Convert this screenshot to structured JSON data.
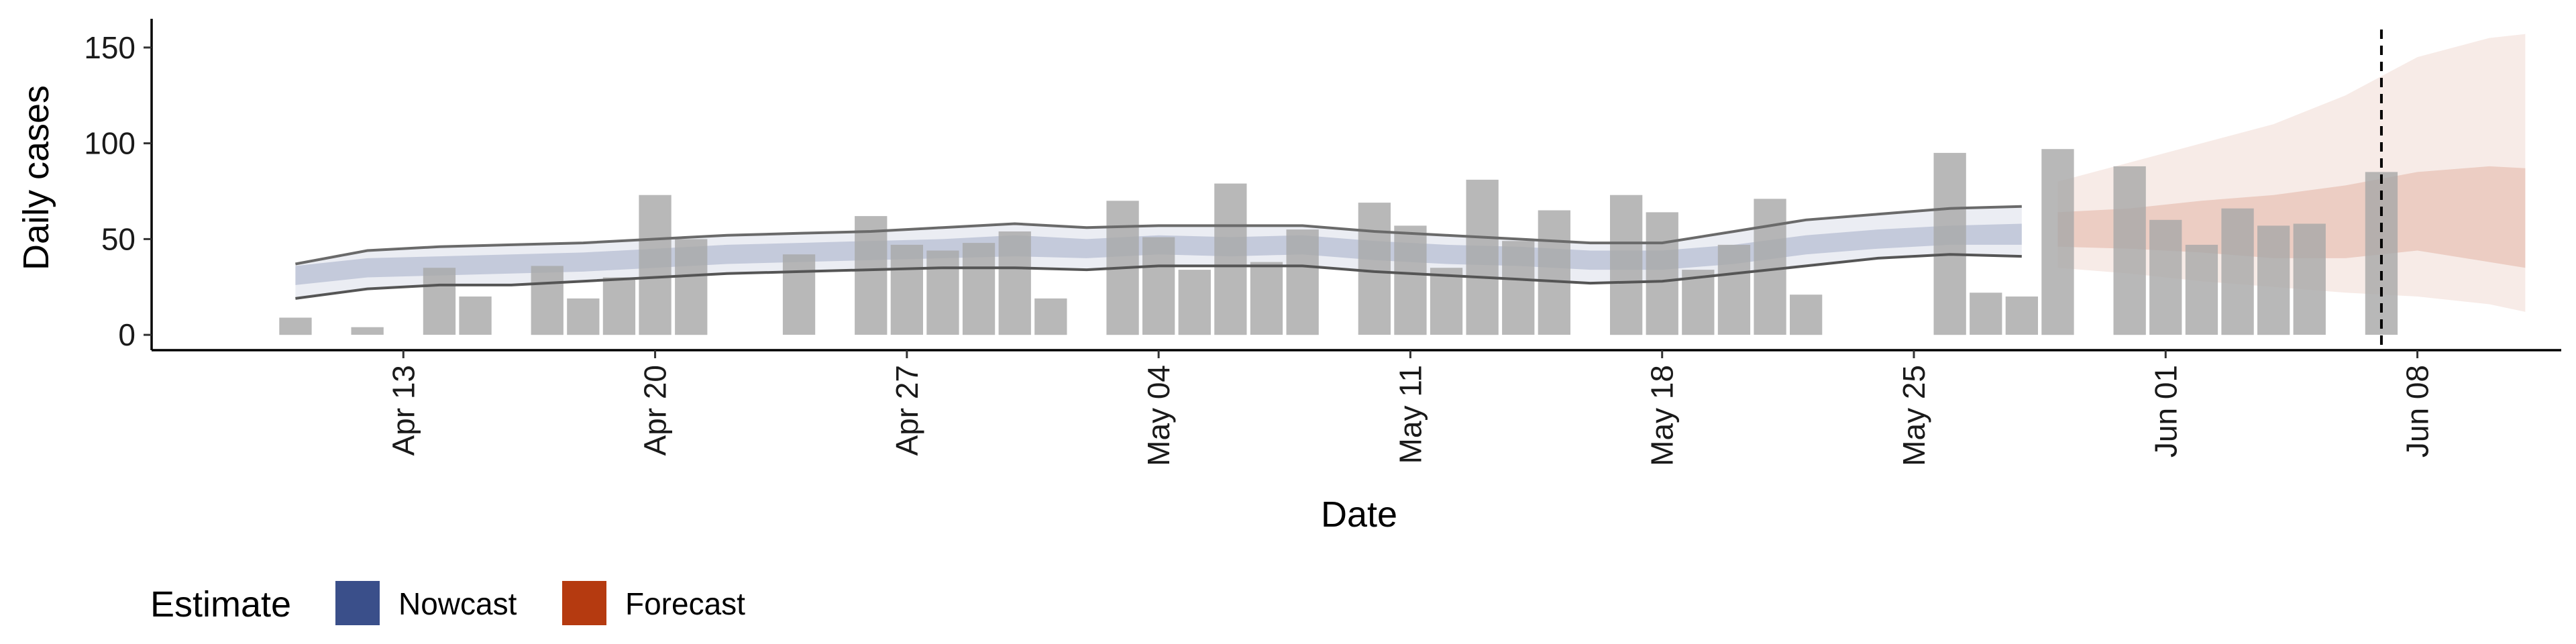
{
  "chart_data": {
    "type": "bar",
    "title": "",
    "xlabel": "Date",
    "ylabel": "Daily cases",
    "x_range": [
      "2020-04-06",
      "2020-06-12"
    ],
    "ylim": [
      -8,
      165
    ],
    "x_ticks": [
      {
        "date": "2020-04-13",
        "label": "Apr 13"
      },
      {
        "date": "2020-04-20",
        "label": "Apr 20"
      },
      {
        "date": "2020-04-27",
        "label": "Apr 27"
      },
      {
        "date": "2020-05-04",
        "label": "May 04"
      },
      {
        "date": "2020-05-11",
        "label": "May 11"
      },
      {
        "date": "2020-05-18",
        "label": "May 18"
      },
      {
        "date": "2020-05-25",
        "label": "May 25"
      },
      {
        "date": "2020-06-01",
        "label": "Jun 01"
      },
      {
        "date": "2020-06-08",
        "label": "Jun 08"
      }
    ],
    "y_ticks": [
      {
        "value": 0,
        "label": "0"
      },
      {
        "value": 50,
        "label": "50"
      },
      {
        "value": 100,
        "label": "100"
      },
      {
        "value": 150,
        "label": "150"
      }
    ],
    "grid": false,
    "reference_line": {
      "date": "2020-06-07",
      "style": "dashed",
      "color": "#000000"
    },
    "bar_color": "#a8a8a8",
    "bars": {
      "dates": [
        "2020-04-10",
        "2020-04-12",
        "2020-04-14",
        "2020-04-15",
        "2020-04-17",
        "2020-04-18",
        "2020-04-19",
        "2020-04-20",
        "2020-04-21",
        "2020-04-24",
        "2020-04-26",
        "2020-04-27",
        "2020-04-28",
        "2020-04-29",
        "2020-04-30",
        "2020-05-01",
        "2020-05-03",
        "2020-05-04",
        "2020-05-05",
        "2020-05-06",
        "2020-05-07",
        "2020-05-08",
        "2020-05-10",
        "2020-05-11",
        "2020-05-12",
        "2020-05-13",
        "2020-05-14",
        "2020-05-15",
        "2020-05-17",
        "2020-05-18",
        "2020-05-19",
        "2020-05-20",
        "2020-05-21",
        "2020-05-22",
        "2020-05-26",
        "2020-05-27",
        "2020-05-28",
        "2020-05-29",
        "2020-05-31",
        "2020-06-01",
        "2020-06-02",
        "2020-06-03",
        "2020-06-04",
        "2020-06-05",
        "2020-06-07"
      ],
      "values": [
        9,
        4,
        35,
        20,
        36,
        19,
        30,
        73,
        50,
        42,
        62,
        47,
        44,
        48,
        54,
        19,
        70,
        51,
        34,
        79,
        38,
        55,
        69,
        57,
        35,
        81,
        49,
        65,
        73,
        64,
        34,
        47,
        71,
        21,
        95,
        22,
        20,
        97,
        88,
        60,
        47,
        66,
        57,
        58,
        85
      ]
    },
    "series": [
      {
        "name": "Nowcast",
        "color": "#3a4f8a",
        "dates": [
          "2020-04-10",
          "2020-04-12",
          "2020-04-14",
          "2020-04-16",
          "2020-04-18",
          "2020-04-20",
          "2020-04-22",
          "2020-04-24",
          "2020-04-26",
          "2020-04-28",
          "2020-04-30",
          "2020-05-02",
          "2020-05-04",
          "2020-05-06",
          "2020-05-08",
          "2020-05-10",
          "2020-05-12",
          "2020-05-14",
          "2020-05-16",
          "2020-05-18",
          "2020-05-20",
          "2020-05-22",
          "2020-05-24",
          "2020-05-26",
          "2020-05-28"
        ],
        "median": [
          31,
          35,
          36,
          37,
          38,
          40,
          42,
          43,
          44,
          45,
          47,
          45,
          47,
          46,
          47,
          44,
          42,
          41,
          39,
          39,
          42,
          47,
          50,
          52,
          53
        ],
        "lower_50": [
          26,
          30,
          31,
          32,
          33,
          35,
          37,
          38,
          39,
          40,
          41,
          40,
          42,
          41,
          42,
          39,
          37,
          36,
          34,
          34,
          37,
          42,
          45,
          47,
          47
        ],
        "upper_50": [
          36,
          40,
          41,
          42,
          43,
          45,
          47,
          48,
          49,
          50,
          52,
          50,
          52,
          51,
          52,
          49,
          47,
          46,
          44,
          44,
          47,
          52,
          55,
          57,
          58
        ],
        "lower_90": [
          19,
          24,
          26,
          26,
          28,
          30,
          32,
          33,
          34,
          35,
          35,
          34,
          36,
          36,
          36,
          33,
          31,
          29,
          27,
          28,
          32,
          36,
          40,
          42,
          41
        ],
        "upper_90": [
          37,
          44,
          46,
          47,
          48,
          50,
          52,
          53,
          54,
          56,
          58,
          56,
          57,
          57,
          57,
          54,
          52,
          50,
          48,
          48,
          54,
          60,
          63,
          66,
          67
        ]
      },
      {
        "name": "Forecast",
        "color": "#b53a10",
        "dates": [
          "2020-05-29",
          "2020-05-31",
          "2020-06-02",
          "2020-06-04",
          "2020-06-06",
          "2020-06-08",
          "2020-06-10",
          "2020-06-11"
        ],
        "lower_50": [
          46,
          45,
          43,
          40,
          40,
          44,
          38,
          35
        ],
        "upper_50": [
          64,
          66,
          70,
          73,
          78,
          85,
          88,
          87
        ],
        "lower_90": [
          35,
          32,
          28,
          25,
          22,
          20,
          16,
          12
        ],
        "upper_90": [
          80,
          90,
          100,
          110,
          125,
          145,
          155,
          157
        ]
      }
    ],
    "legend": {
      "title": "Estimate",
      "placement": "bottom-left",
      "items": [
        {
          "label": "Nowcast",
          "color": "#3a4f8a"
        },
        {
          "label": "Forecast",
          "color": "#b53a10"
        }
      ]
    }
  }
}
